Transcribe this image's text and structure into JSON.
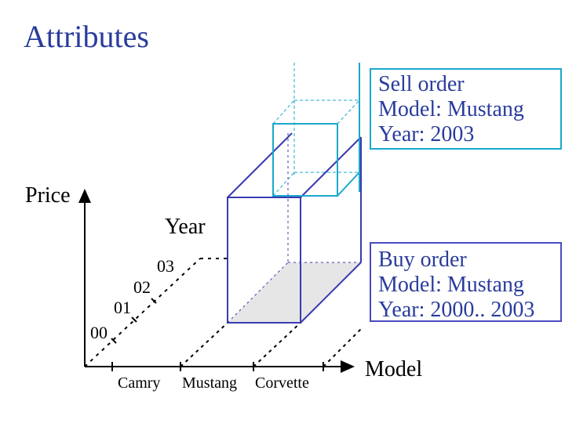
{
  "title": "Attributes",
  "axes": {
    "price": "Price",
    "year": "Year",
    "model": "Model"
  },
  "year_ticks": [
    "00",
    "01",
    "02",
    "03"
  ],
  "model_ticks": [
    "Camry",
    "Mustang",
    "Corvette"
  ],
  "sell_order": {
    "lines": [
      "Sell order",
      "Model: Mustang",
      "Year: 2003"
    ]
  },
  "buy_order": {
    "lines": [
      "Buy order",
      "Model: Mustang",
      "Year: 2000.. 2003"
    ]
  }
}
